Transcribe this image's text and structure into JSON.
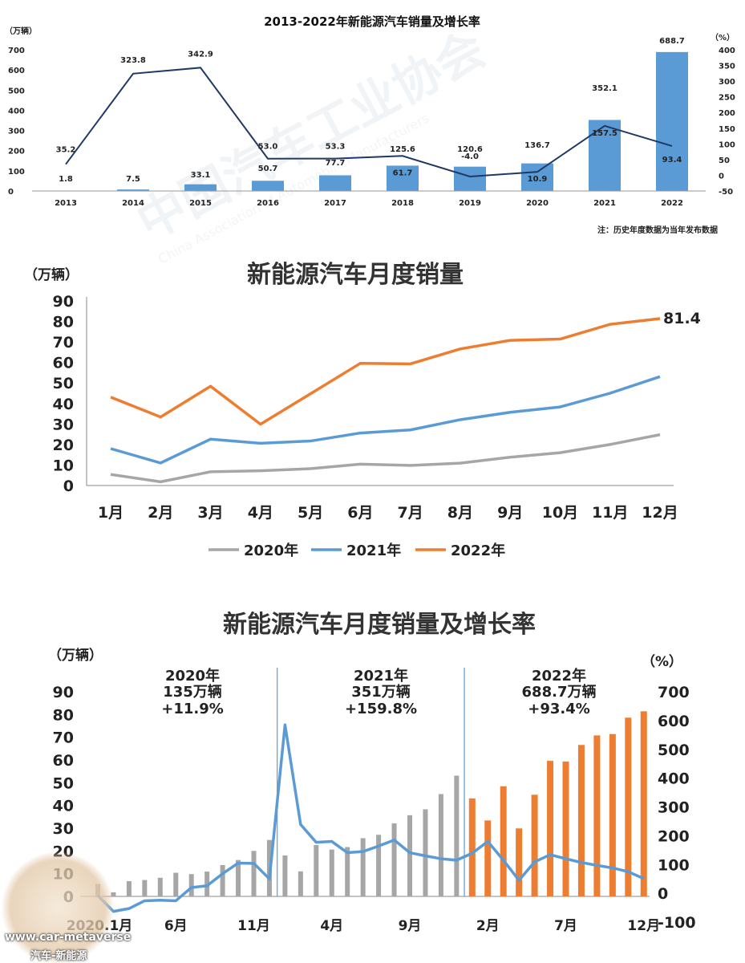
{
  "chart_data": [
    {
      "type": "bar+line",
      "title": "2013-2022年新能源汽车销量及增长率",
      "ylabel_left": "（万辆）",
      "ylabel_right": "（%）",
      "note": "注：历史年度数据为当年发布数据",
      "categories": [
        "2013",
        "2014",
        "2015",
        "2016",
        "2017",
        "2018",
        "2019",
        "2020",
        "2021",
        "2022"
      ],
      "series": [
        {
          "name": "销量",
          "kind": "bar",
          "color": "#5b9bd5",
          "values": [
            1.8,
            7.5,
            33.1,
            50.7,
            77.7,
            125.6,
            120.6,
            136.7,
            352.1,
            688.7
          ],
          "labels": [
            "1.8",
            "7.5",
            "33.1",
            "50.7",
            "77.7",
            "125.6",
            "120.6",
            "136.7",
            "352.1",
            "688.7"
          ]
        },
        {
          "name": "增长率",
          "kind": "line",
          "color": "#1f3864",
          "values": [
            35.2,
            323.8,
            342.9,
            53.0,
            53.3,
            61.7,
            -4.0,
            10.9,
            157.5,
            93.4
          ],
          "labels": [
            "35.2",
            "323.8",
            "342.9",
            "53.0",
            "53.3",
            "61.7",
            "-4.0",
            "10.9",
            "157.5",
            "93.4"
          ]
        }
      ],
      "left_ticks": [
        "0",
        "100",
        "200",
        "300",
        "400",
        "500",
        "600",
        "700"
      ],
      "right_ticks": [
        "-50",
        "0",
        "50",
        "100",
        "150",
        "200",
        "250",
        "300",
        "350",
        "400"
      ],
      "ylim_left": [
        0,
        700
      ],
      "ylim_right": [
        -50,
        400
      ]
    },
    {
      "type": "line",
      "title": "新能源汽车月度销量",
      "ylabel": "（万辆）",
      "categories": [
        "1月",
        "2月",
        "3月",
        "4月",
        "5月",
        "6月",
        "7月",
        "8月",
        "9月",
        "10月",
        "11月",
        "12月"
      ],
      "ylim": [
        0,
        90
      ],
      "y_ticks": [
        "0",
        "10",
        "20",
        "30",
        "40",
        "50",
        "60",
        "70",
        "80",
        "90"
      ],
      "series": [
        {
          "name": "2020年",
          "color": "#a6a6a6",
          "values": [
            5.4,
            1.8,
            6.7,
            7.2,
            8.2,
            10.4,
            9.8,
            10.9,
            13.8,
            16.0,
            20.0,
            24.8
          ]
        },
        {
          "name": "2021年",
          "color": "#5b9bd5",
          "values": [
            18.0,
            11.0,
            22.6,
            20.6,
            21.7,
            25.6,
            27.1,
            32.1,
            35.7,
            38.3,
            45.0,
            53.1
          ]
        },
        {
          "name": "2022年",
          "color": "#ed7d31",
          "values": [
            43.1,
            33.4,
            48.4,
            29.9,
            44.7,
            59.6,
            59.3,
            66.6,
            70.8,
            71.4,
            78.6,
            81.4
          ]
        }
      ],
      "end_label": "81.4"
    },
    {
      "type": "bar+line",
      "title": "新能源汽车月度销量及增长率",
      "ylabel_left": "（万辆）",
      "ylabel_right": "（%）",
      "ylim_left": [
        0,
        90
      ],
      "ylim_right": [
        -100,
        700
      ],
      "left_ticks": [
        "0",
        "10",
        "20",
        "30",
        "40",
        "50",
        "60",
        "70",
        "80",
        "90"
      ],
      "right_ticks": [
        "-100",
        "0",
        "100",
        "200",
        "300",
        "400",
        "500",
        "600",
        "700"
      ],
      "x_tick_labels": [
        "2020.1月",
        "6月",
        "11月",
        "4月",
        "9月",
        "2月",
        "7月",
        "12月"
      ],
      "x_tick_index": [
        0,
        5,
        10,
        15,
        20,
        25,
        30,
        35
      ],
      "bars_2020": [
        5.4,
        1.8,
        6.7,
        7.2,
        8.2,
        10.4,
        9.8,
        10.9,
        13.8,
        16.0,
        20.0,
        24.8
      ],
      "bars_2021": [
        18.0,
        11.0,
        22.6,
        20.6,
        21.7,
        25.6,
        27.1,
        32.1,
        35.7,
        38.3,
        45.0,
        53.1
      ],
      "bars_2022": [
        43.1,
        33.4,
        48.4,
        29.9,
        44.7,
        59.6,
        59.3,
        66.6,
        70.8,
        71.4,
        78.6,
        81.4
      ],
      "growth_rate": [
        -8,
        -63,
        -53,
        -26,
        -24,
        -26,
        20,
        26,
        68,
        105,
        104,
        50,
        585,
        239,
        177,
        180,
        141,
        145,
        164,
        185,
        141,
        130,
        120,
        115,
        139,
        180,
        115,
        45,
        109,
        134,
        120,
        107,
        97,
        88,
        75,
        51
      ],
      "annotations": [
        {
          "year": "2020年",
          "total": "135万辆",
          "growth": "+11.9%"
        },
        {
          "year": "2021年",
          "total": "351万辆",
          "growth": "+159.8%"
        },
        {
          "year": "2022年",
          "total": "688.7万辆",
          "growth": "+93.4%"
        }
      ],
      "colors": {
        "bar_2020": "#a6a6a6",
        "bar_2021": "#a6a6a6",
        "bar_2022": "#ed7d31",
        "line": "#5b9bd5",
        "divider": "#5b9bd5"
      }
    }
  ],
  "watermark": {
    "text": "中国汽车工业协会",
    "sub": "China Association of Automobile Manufacturers"
  },
  "footer": {
    "site": "www.car-metaverse",
    "caption": "汽车-新能源"
  }
}
